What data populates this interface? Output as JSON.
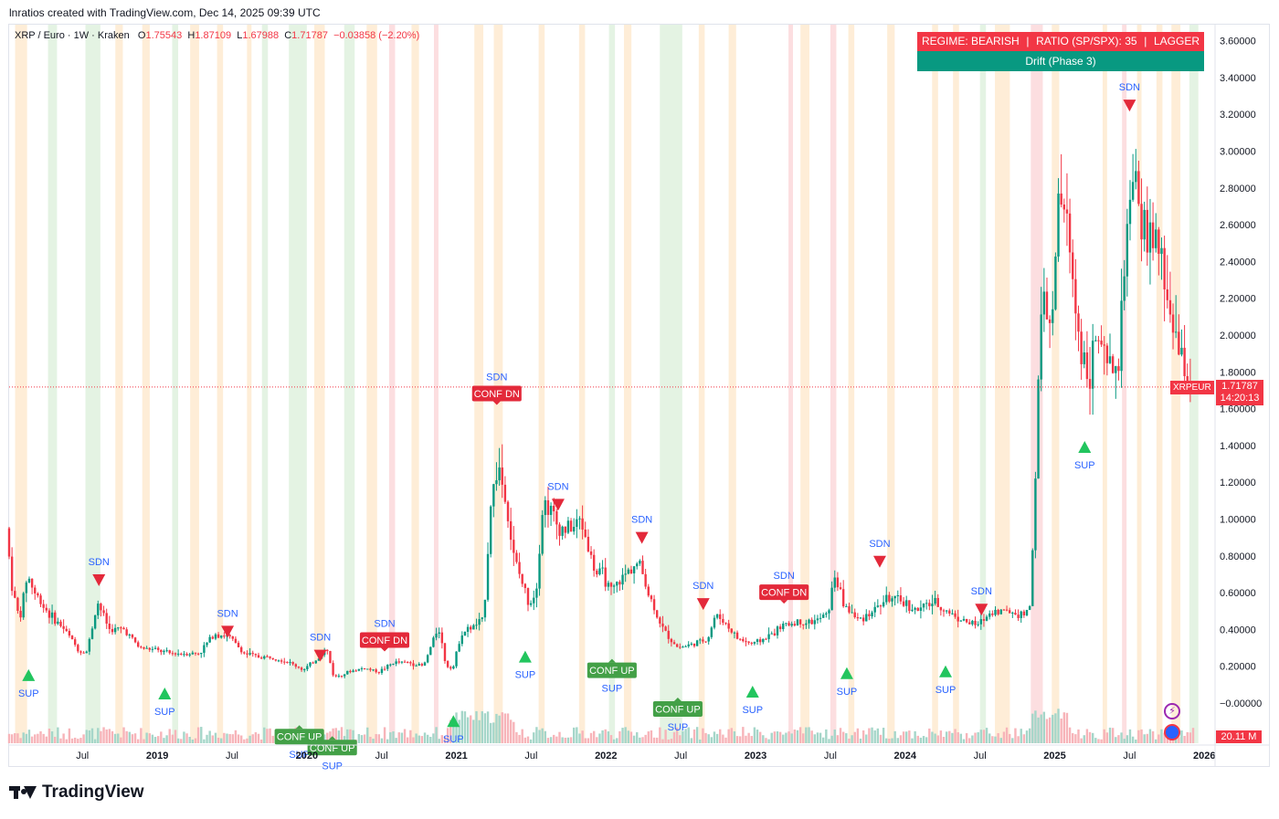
{
  "header": {
    "caption": "lnratios created with TradingView.com, Dec 14, 2025 09:39 UTC"
  },
  "legend": {
    "symbol": "XRP / Euro · 1W · Kraken",
    "open_label": "O",
    "open": "1.75543",
    "high_label": "H",
    "high": "1.87109",
    "low_label": "L",
    "low": "1.67988",
    "close_label": "C",
    "close": "1.71787",
    "change": "−0.03858 (−2.20%)"
  },
  "regime": {
    "row1_left": "REGIME: BEARISH",
    "row1_sep": "|",
    "row1_mid": "RATIO (SP/SPX): 35",
    "row1_right": "LAGGER",
    "row2": "Drift (Phase 3)"
  },
  "price_tag": {
    "symbol": "XRPEUR",
    "price": "1.71787",
    "countdown": "14:20:13"
  },
  "volume_tag": "20.11 M",
  "logo_text": "TradingView",
  "icons": [
    "lightning-icon",
    "globe-icon"
  ],
  "colors": {
    "up": "#089981",
    "down": "#f23645",
    "band_orange": "#fde7c9",
    "band_green": "#dbefd9",
    "band_red": "#fbd3d6",
    "signal_up": "#22c55e",
    "signal_down": "#e3293a"
  },
  "chart_data": {
    "type": "candlestick",
    "title": "XRP / Euro · 1W · Kraken",
    "xlabel": "",
    "ylabel": "",
    "ylim": [
      -0.1,
      3.6
    ],
    "y_ticks": [
      "3.60000",
      "3.40000",
      "3.20000",
      "3.00000",
      "2.80000",
      "2.60000",
      "2.40000",
      "2.20000",
      "2.00000",
      "1.80000",
      "1.60000",
      "1.40000",
      "1.20000",
      "1.00000",
      "0.80000",
      "0.60000",
      "0.40000",
      "0.20000",
      "−0.00000"
    ],
    "y_tick_values": [
      3.6,
      3.4,
      3.2,
      3.0,
      2.8,
      2.6,
      2.4,
      2.2,
      2.0,
      1.8,
      1.6,
      1.4,
      1.2,
      1.0,
      0.8,
      0.6,
      0.4,
      0.2,
      0.0
    ],
    "x_range": [
      2018.01,
      2025.98
    ],
    "x_ticks": [
      {
        "label": "Jul",
        "t": 2018.5
      },
      {
        "label": "2019",
        "t": 2019.0
      },
      {
        "label": "Jul",
        "t": 2019.5
      },
      {
        "label": "2020",
        "t": 2020.0
      },
      {
        "label": "Jul",
        "t": 2020.5
      },
      {
        "label": "2021",
        "t": 2021.0
      },
      {
        "label": "Jul",
        "t": 2021.5
      },
      {
        "label": "2022",
        "t": 2022.0
      },
      {
        "label": "Jul",
        "t": 2022.5
      },
      {
        "label": "2023",
        "t": 2023.0
      },
      {
        "label": "Jul",
        "t": 2023.5
      },
      {
        "label": "2024",
        "t": 2024.0
      },
      {
        "label": "Jul",
        "t": 2024.5
      },
      {
        "label": "2025",
        "t": 2025.0
      },
      {
        "label": "Jul",
        "t": 2025.5
      },
      {
        "label": "2026",
        "t": 2026.0
      }
    ],
    "last_price": 1.71787,
    "price_keypoints": [
      [
        2018.01,
        0.95
      ],
      [
        2018.05,
        0.62
      ],
      [
        2018.1,
        0.45
      ],
      [
        2018.15,
        0.7
      ],
      [
        2018.2,
        0.6
      ],
      [
        2018.3,
        0.48
      ],
      [
        2018.4,
        0.4
      ],
      [
        2018.5,
        0.28
      ],
      [
        2018.55,
        0.28
      ],
      [
        2018.62,
        0.55
      ],
      [
        2018.7,
        0.4
      ],
      [
        2018.8,
        0.4
      ],
      [
        2018.9,
        0.3
      ],
      [
        2019.0,
        0.29
      ],
      [
        2019.1,
        0.27
      ],
      [
        2019.2,
        0.27
      ],
      [
        2019.3,
        0.27
      ],
      [
        2019.4,
        0.38
      ],
      [
        2019.5,
        0.36
      ],
      [
        2019.6,
        0.27
      ],
      [
        2019.7,
        0.25
      ],
      [
        2019.8,
        0.25
      ],
      [
        2019.9,
        0.22
      ],
      [
        2020.0,
        0.18
      ],
      [
        2020.1,
        0.25
      ],
      [
        2020.15,
        0.3
      ],
      [
        2020.2,
        0.14
      ],
      [
        2020.3,
        0.17
      ],
      [
        2020.4,
        0.19
      ],
      [
        2020.5,
        0.17
      ],
      [
        2020.6,
        0.22
      ],
      [
        2020.7,
        0.22
      ],
      [
        2020.8,
        0.2
      ],
      [
        2020.9,
        0.42
      ],
      [
        2020.95,
        0.2
      ],
      [
        2021.0,
        0.2
      ],
      [
        2021.05,
        0.38
      ],
      [
        2021.1,
        0.4
      ],
      [
        2021.2,
        0.45
      ],
      [
        2021.25,
        1.1
      ],
      [
        2021.3,
        1.3
      ],
      [
        2021.35,
        1.1
      ],
      [
        2021.4,
        0.8
      ],
      [
        2021.5,
        0.55
      ],
      [
        2021.55,
        0.6
      ],
      [
        2021.6,
        1.1
      ],
      [
        2021.65,
        1.05
      ],
      [
        2021.7,
        0.95
      ],
      [
        2021.8,
        0.95
      ],
      [
        2021.85,
        1.0
      ],
      [
        2021.9,
        0.85
      ],
      [
        2021.95,
        0.7
      ],
      [
        2022.0,
        0.7
      ],
      [
        2022.05,
        0.6
      ],
      [
        2022.1,
        0.65
      ],
      [
        2022.2,
        0.75
      ],
      [
        2022.25,
        0.75
      ],
      [
        2022.3,
        0.6
      ],
      [
        2022.4,
        0.4
      ],
      [
        2022.5,
        0.3
      ],
      [
        2022.6,
        0.32
      ],
      [
        2022.7,
        0.35
      ],
      [
        2022.75,
        0.48
      ],
      [
        2022.8,
        0.45
      ],
      [
        2022.9,
        0.35
      ],
      [
        2023.0,
        0.32
      ],
      [
        2023.1,
        0.36
      ],
      [
        2023.2,
        0.42
      ],
      [
        2023.3,
        0.44
      ],
      [
        2023.4,
        0.44
      ],
      [
        2023.5,
        0.48
      ],
      [
        2023.55,
        0.7
      ],
      [
        2023.6,
        0.55
      ],
      [
        2023.7,
        0.45
      ],
      [
        2023.8,
        0.5
      ],
      [
        2023.9,
        0.57
      ],
      [
        2024.0,
        0.55
      ],
      [
        2024.1,
        0.5
      ],
      [
        2024.2,
        0.55
      ],
      [
        2024.3,
        0.5
      ],
      [
        2024.4,
        0.45
      ],
      [
        2024.5,
        0.42
      ],
      [
        2024.6,
        0.5
      ],
      [
        2024.7,
        0.5
      ],
      [
        2024.8,
        0.48
      ],
      [
        2024.85,
        0.5
      ],
      [
        2024.88,
        1.0
      ],
      [
        2024.92,
        2.0
      ],
      [
        2024.95,
        2.2
      ],
      [
        2025.0,
        2.0
      ],
      [
        2025.05,
        2.8
      ],
      [
        2025.1,
        2.6
      ],
      [
        2025.15,
        2.2
      ],
      [
        2025.2,
        1.9
      ],
      [
        2025.25,
        1.8
      ],
      [
        2025.3,
        2.0
      ],
      [
        2025.35,
        1.85
      ],
      [
        2025.4,
        1.8
      ],
      [
        2025.45,
        1.85
      ],
      [
        2025.5,
        2.6
      ],
      [
        2025.55,
        2.8
      ],
      [
        2025.6,
        2.6
      ],
      [
        2025.65,
        2.55
      ],
      [
        2025.7,
        2.5
      ],
      [
        2025.75,
        2.3
      ],
      [
        2025.8,
        2.1
      ],
      [
        2025.85,
        1.9
      ],
      [
        2025.9,
        1.8
      ],
      [
        2025.94,
        1.72
      ]
    ],
    "signals": [
      {
        "type": "up",
        "label": "SUP",
        "t": 2018.14,
        "price": 0.12,
        "box": false
      },
      {
        "type": "down",
        "label": "SDN",
        "t": 2018.61,
        "price": 0.7,
        "box": false
      },
      {
        "type": "up",
        "label": "SUP",
        "t": 2019.05,
        "price": 0.02,
        "box": false
      },
      {
        "type": "down",
        "label": "SDN",
        "t": 2019.47,
        "price": 0.42,
        "box": false
      },
      {
        "type": "up",
        "label": "CONF UP",
        "t": 2019.95,
        "price": -0.14,
        "box": true
      },
      {
        "type": "down",
        "label": "SDN",
        "t": 2020.09,
        "price": 0.29,
        "box": false
      },
      {
        "type": "up",
        "label": "CONF UP",
        "t": 2020.17,
        "price": -0.2,
        "box": true
      },
      {
        "type": "down",
        "label": "CONF DN",
        "t": 2020.52,
        "price": 0.3,
        "box": true
      },
      {
        "type": "up",
        "label": "SUP",
        "t": 2020.98,
        "price": -0.13,
        "box": false
      },
      {
        "type": "down",
        "label": "CONF DN",
        "t": 2021.27,
        "price": 1.64,
        "box": true
      },
      {
        "type": "up",
        "label": "SUP",
        "t": 2021.46,
        "price": 0.22,
        "box": false
      },
      {
        "type": "down",
        "label": "SDN",
        "t": 2021.68,
        "price": 1.11,
        "box": false
      },
      {
        "type": "up",
        "label": "CONF UP",
        "t": 2022.04,
        "price": 0.22,
        "box": true
      },
      {
        "type": "down",
        "label": "SDN",
        "t": 2022.24,
        "price": 0.93,
        "box": false
      },
      {
        "type": "up",
        "label": "CONF UP",
        "t": 2022.48,
        "price": 0.01,
        "box": true
      },
      {
        "type": "down",
        "label": "SDN",
        "t": 2022.65,
        "price": 0.57,
        "box": false
      },
      {
        "type": "up",
        "label": "SUP",
        "t": 2022.98,
        "price": 0.03,
        "box": false
      },
      {
        "type": "down",
        "label": "CONF DN",
        "t": 2023.19,
        "price": 0.56,
        "box": true
      },
      {
        "type": "up",
        "label": "SUP",
        "t": 2023.61,
        "price": 0.13,
        "box": false
      },
      {
        "type": "down",
        "label": "SDN",
        "t": 2023.83,
        "price": 0.8,
        "box": false
      },
      {
        "type": "up",
        "label": "SUP",
        "t": 2024.27,
        "price": 0.14,
        "box": false
      },
      {
        "type": "down",
        "label": "SDN",
        "t": 2024.51,
        "price": 0.54,
        "box": false
      },
      {
        "type": "up",
        "label": "SUP",
        "t": 2025.2,
        "price": 1.36,
        "box": false
      },
      {
        "type": "down",
        "label": "SDN",
        "t": 2025.5,
        "price": 3.28,
        "box": false
      }
    ],
    "regime_bands": [
      {
        "start": 2018.05,
        "end": 2018.13,
        "color": "orange"
      },
      {
        "start": 2018.27,
        "end": 2018.33,
        "color": "green"
      },
      {
        "start": 2018.52,
        "end": 2018.62,
        "color": "green"
      },
      {
        "start": 2018.72,
        "end": 2018.77,
        "color": "orange"
      },
      {
        "start": 2018.9,
        "end": 2018.95,
        "color": "orange"
      },
      {
        "start": 2019.1,
        "end": 2019.14,
        "color": "green"
      },
      {
        "start": 2019.22,
        "end": 2019.28,
        "color": "orange"
      },
      {
        "start": 2019.4,
        "end": 2019.44,
        "color": "orange"
      },
      {
        "start": 2019.6,
        "end": 2019.63,
        "color": "orange"
      },
      {
        "start": 2019.7,
        "end": 2019.74,
        "color": "green"
      },
      {
        "start": 2019.88,
        "end": 2020.0,
        "color": "green"
      },
      {
        "start": 2020.05,
        "end": 2020.12,
        "color": "orange"
      },
      {
        "start": 2020.25,
        "end": 2020.32,
        "color": "green"
      },
      {
        "start": 2020.4,
        "end": 2020.47,
        "color": "orange"
      },
      {
        "start": 2020.55,
        "end": 2020.59,
        "color": "red"
      },
      {
        "start": 2020.7,
        "end": 2020.75,
        "color": "orange"
      },
      {
        "start": 2020.85,
        "end": 2020.88,
        "color": "red"
      },
      {
        "start": 2021.12,
        "end": 2021.18,
        "color": "orange"
      },
      {
        "start": 2021.25,
        "end": 2021.31,
        "color": "orange"
      },
      {
        "start": 2021.55,
        "end": 2021.59,
        "color": "orange"
      },
      {
        "start": 2021.82,
        "end": 2021.86,
        "color": "orange"
      },
      {
        "start": 2022.02,
        "end": 2022.06,
        "color": "green"
      },
      {
        "start": 2022.12,
        "end": 2022.17,
        "color": "orange"
      },
      {
        "start": 2022.36,
        "end": 2022.51,
        "color": "green"
      },
      {
        "start": 2022.62,
        "end": 2022.66,
        "color": "orange"
      },
      {
        "start": 2022.82,
        "end": 2022.87,
        "color": "orange"
      },
      {
        "start": 2023.22,
        "end": 2023.25,
        "color": "red"
      },
      {
        "start": 2023.3,
        "end": 2023.36,
        "color": "orange"
      },
      {
        "start": 2023.5,
        "end": 2023.54,
        "color": "red"
      },
      {
        "start": 2023.62,
        "end": 2023.66,
        "color": "orange"
      },
      {
        "start": 2023.88,
        "end": 2023.93,
        "color": "orange"
      },
      {
        "start": 2024.18,
        "end": 2024.22,
        "color": "orange"
      },
      {
        "start": 2024.32,
        "end": 2024.36,
        "color": "orange"
      },
      {
        "start": 2024.5,
        "end": 2024.54,
        "color": "green"
      },
      {
        "start": 2024.6,
        "end": 2024.7,
        "color": "orange"
      },
      {
        "start": 2024.84,
        "end": 2024.92,
        "color": "red"
      },
      {
        "start": 2024.98,
        "end": 2025.03,
        "color": "orange"
      },
      {
        "start": 2025.32,
        "end": 2025.35,
        "color": "orange"
      },
      {
        "start": 2025.45,
        "end": 2025.48,
        "color": "red"
      },
      {
        "start": 2025.55,
        "end": 2025.58,
        "color": "orange"
      },
      {
        "start": 2025.68,
        "end": 2025.72,
        "color": "orange"
      },
      {
        "start": 2025.78,
        "end": 2025.84,
        "color": "orange"
      },
      {
        "start": 2025.9,
        "end": 2025.96,
        "color": "green"
      }
    ]
  }
}
